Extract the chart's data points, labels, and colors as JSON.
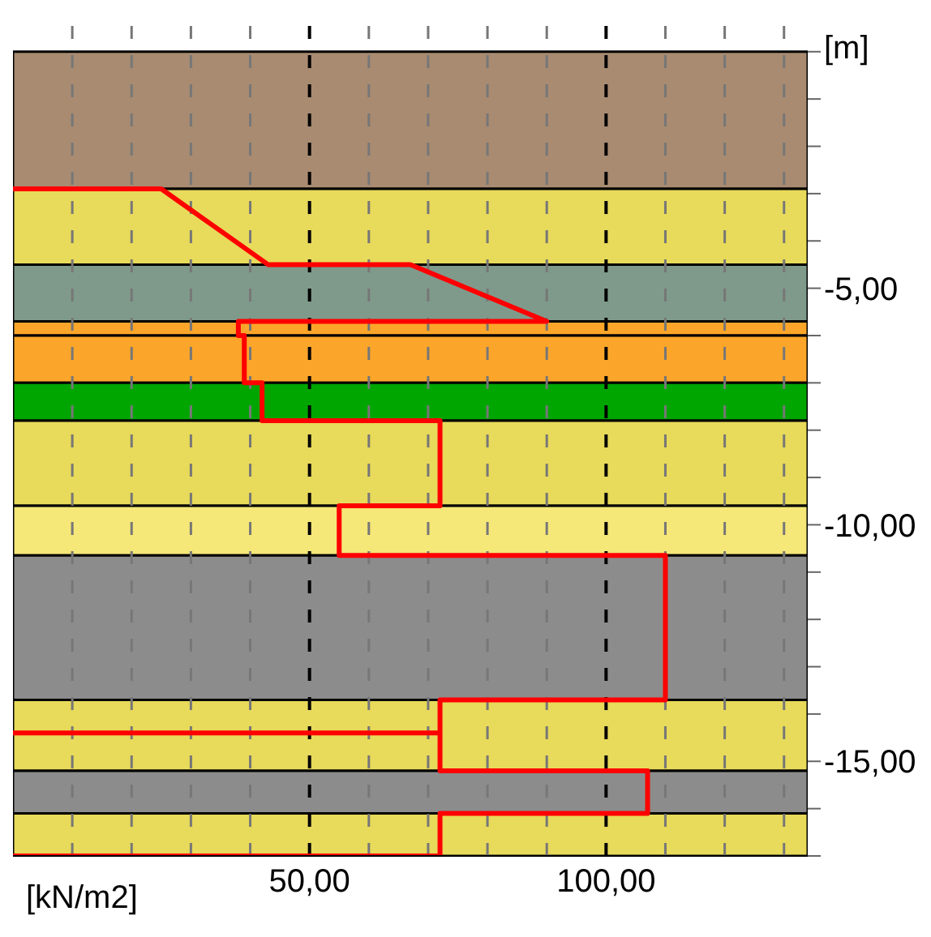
{
  "chart_data": {
    "type": "line",
    "xlabel": "[kN/m2]",
    "ylabel": "[m]",
    "xlim": [
      0,
      134
    ],
    "ylim": [
      -17,
      0.75
    ],
    "xticks": [
      {
        "value": 10,
        "label": null
      },
      {
        "value": 20,
        "label": null
      },
      {
        "value": 30,
        "label": null
      },
      {
        "value": 40,
        "label": null
      },
      {
        "value": 50,
        "label": "50,00"
      },
      {
        "value": 60,
        "label": null
      },
      {
        "value": 70,
        "label": null
      },
      {
        "value": 80,
        "label": null
      },
      {
        "value": 90,
        "label": null
      },
      {
        "value": 100,
        "label": "100,00"
      },
      {
        "value": 110,
        "label": null
      },
      {
        "value": 120,
        "label": null
      },
      {
        "value": 130,
        "label": null
      }
    ],
    "yticks": [
      {
        "value": 0,
        "label": null
      },
      {
        "value": -1,
        "label": null
      },
      {
        "value": -2,
        "label": null
      },
      {
        "value": -3,
        "label": null
      },
      {
        "value": -4,
        "label": null
      },
      {
        "value": -5,
        "label": "-5,00"
      },
      {
        "value": -6,
        "label": null
      },
      {
        "value": -7,
        "label": null
      },
      {
        "value": -8,
        "label": null
      },
      {
        "value": -9,
        "label": null
      },
      {
        "value": -10,
        "label": "-10,00"
      },
      {
        "value": -11,
        "label": null
      },
      {
        "value": -12,
        "label": null
      },
      {
        "value": -13,
        "label": null
      },
      {
        "value": -14,
        "label": null
      },
      {
        "value": -15,
        "label": "-15,00"
      },
      {
        "value": -16,
        "label": null
      },
      {
        "value": -17,
        "label": null
      }
    ],
    "grid": "x",
    "marker": "none",
    "line_style": "solid",
    "series": [
      {
        "color": "#ff0000",
        "x": [
          0,
          25,
          43,
          67,
          90,
          38,
          38,
          39,
          39,
          42,
          42,
          72,
          72,
          55,
          55,
          110,
          110,
          72,
          72,
          0,
          72,
          72,
          107,
          107,
          72,
          72,
          0
        ],
        "values": [
          -2.9,
          -2.9,
          -4.5,
          -4.5,
          -5.7,
          -5.7,
          -6.0,
          -6.0,
          -7.0,
          -7.0,
          -7.8,
          -7.8,
          -9.6,
          -9.6,
          -10.65,
          -10.65,
          -13.7,
          -13.7,
          -14.4,
          -14.4,
          -14.4,
          -15.2,
          -15.2,
          -16.1,
          -16.1,
          -17,
          -17
        ]
      }
    ],
    "bands": [
      {
        "axis": "y",
        "from": 0,
        "to": -2.9,
        "color": "#a88b71"
      },
      {
        "axis": "y",
        "from": -2.9,
        "to": -4.5,
        "color": "#e8da5a"
      },
      {
        "axis": "y",
        "from": -4.5,
        "to": -5.7,
        "color": "#7f9a8a"
      },
      {
        "axis": "y",
        "from": -5.7,
        "to": -6.0,
        "color": "#fba62a"
      },
      {
        "axis": "y",
        "from": -6.0,
        "to": -7.0,
        "color": "#fba62a"
      },
      {
        "axis": "y",
        "from": -7.0,
        "to": -7.8,
        "color": "#00a600"
      },
      {
        "axis": "y",
        "from": -7.8,
        "to": -9.6,
        "color": "#e8da5a"
      },
      {
        "axis": "y",
        "from": -9.6,
        "to": -10.65,
        "color": "#f5e778"
      },
      {
        "axis": "y",
        "from": -10.65,
        "to": -13.7,
        "color": "#8c8c8c"
      },
      {
        "axis": "y",
        "from": -13.7,
        "to": -15.2,
        "color": "#e8da5a"
      },
      {
        "axis": "y",
        "from": -15.2,
        "to": -16.1,
        "color": "#8c8c8c"
      },
      {
        "axis": "y",
        "from": -16.1,
        "to": -17,
        "color": "#e8da5a"
      }
    ]
  }
}
